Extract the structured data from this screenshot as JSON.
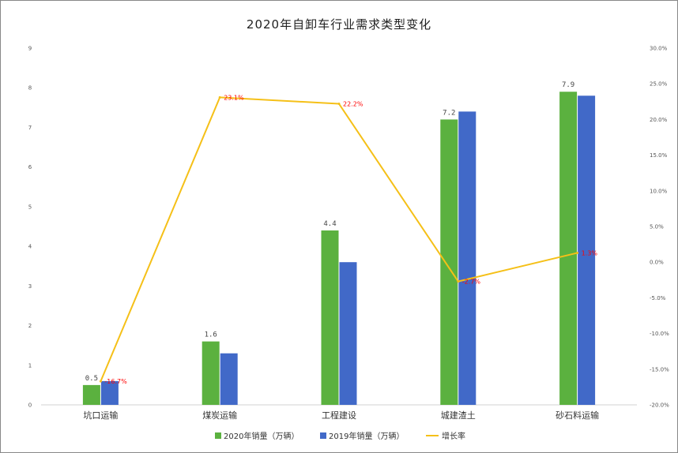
{
  "chart_data": {
    "type": "bar",
    "title": "2020年自卸车行业需求类型变化",
    "categories": [
      "坑口运输",
      "煤炭运输",
      "工程建设",
      "城建渣土",
      "砂石料运输"
    ],
    "series": [
      {
        "name": "2020年销量（万辆）",
        "type": "bar",
        "axis": "left",
        "color": "#5bb13f",
        "values": [
          0.5,
          1.6,
          4.4,
          7.2,
          7.9
        ],
        "labels": [
          "0.5",
          "1.6",
          "4.4",
          "7.2",
          "7.9"
        ]
      },
      {
        "name": "2019年销量（万辆）",
        "type": "bar",
        "axis": "left",
        "color": "#4169c8",
        "values": [
          0.6,
          1.3,
          3.6,
          7.4,
          7.8
        ]
      },
      {
        "name": "增长率",
        "type": "line",
        "axis": "right",
        "color": "#f5c018",
        "values": [
          -16.7,
          23.1,
          22.2,
          -2.7,
          1.3
        ],
        "labels": [
          "-16.7%",
          "23.1%",
          "22.2%",
          "-2.7%",
          "1.3%"
        ]
      }
    ],
    "y_left": {
      "min": 0,
      "max": 9,
      "ticks": [
        "0",
        "1",
        "2",
        "3",
        "4",
        "5",
        "6",
        "7",
        "8",
        "9"
      ]
    },
    "y_right": {
      "min": -20,
      "max": 30,
      "ticks": [
        "-20.0%",
        "-15.0%",
        "-10.0%",
        "-5.0%",
        "0.0%",
        "5.0%",
        "10.0%",
        "15.0%",
        "20.0%",
        "25.0%",
        "30.0%"
      ]
    },
    "grid": false,
    "legend_position": "bottom"
  }
}
